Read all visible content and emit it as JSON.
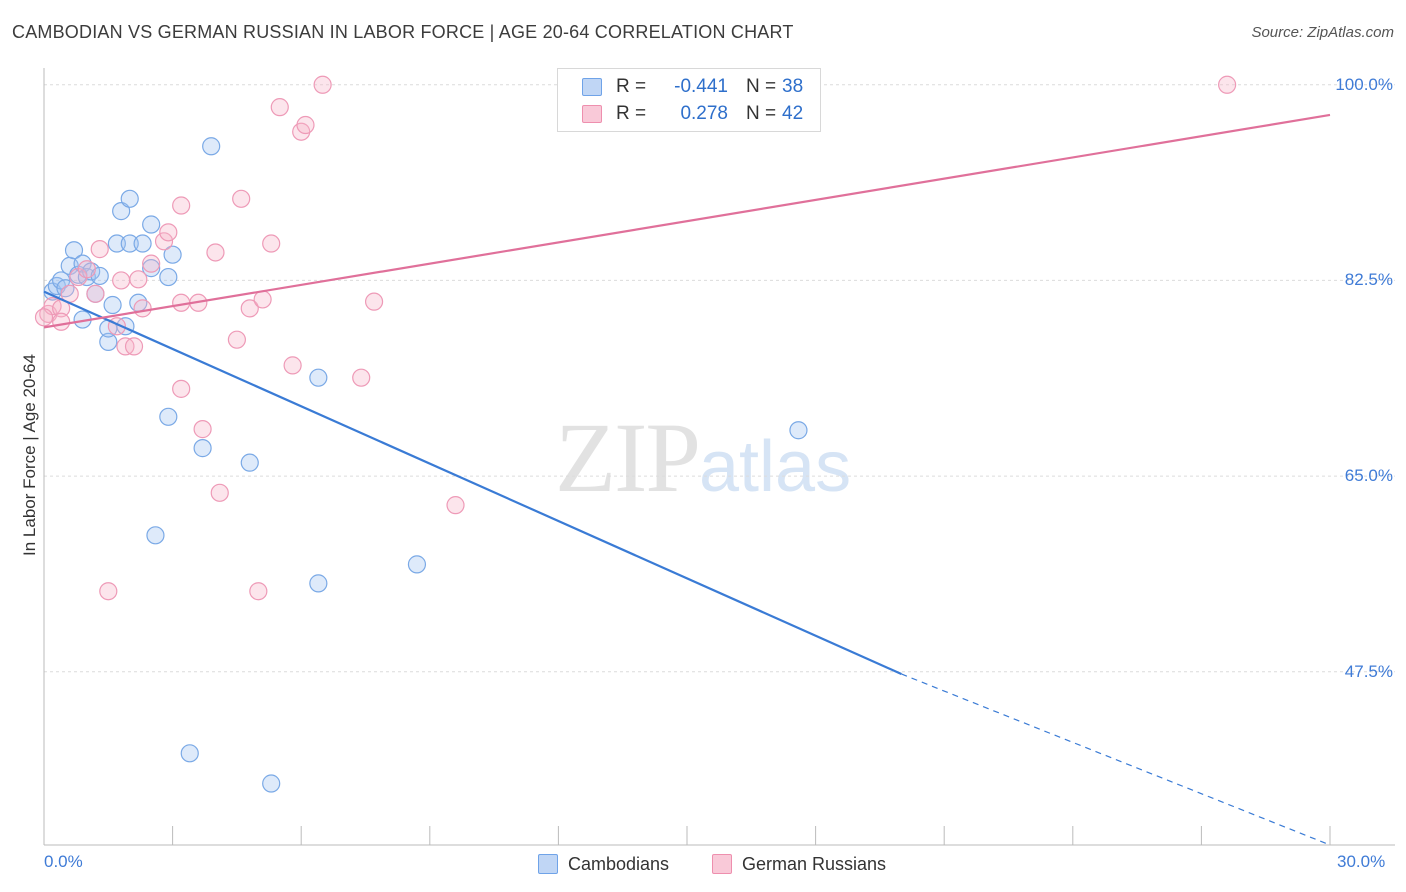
{
  "title": "CAMBODIAN VS GERMAN RUSSIAN IN LABOR FORCE | AGE 20-64 CORRELATION CHART",
  "source": "Source: ZipAtlas.com",
  "watermark": {
    "zip": "ZIP",
    "atlas": "atlas"
  },
  "legend": {
    "rows": [
      {
        "r_label": "R =",
        "r_value": "-0.441",
        "n_label": "N =",
        "n_value": "38",
        "color": "#6fa3e8",
        "fill": "#c0d6f5"
      },
      {
        "r_label": "R =",
        "r_value": "0.278",
        "n_label": "N =",
        "n_value": "42",
        "color": "#ee8fae",
        "fill": "#f9c9d8"
      }
    ]
  },
  "chart_data": {
    "type": "scatter",
    "title": "CAMBODIAN VS GERMAN RUSSIAN IN LABOR FORCE | AGE 20-64 CORRELATION CHART",
    "xlabel": "",
    "ylabel": "In Labor Force | Age 20-64",
    "xlim": [
      0,
      30
    ],
    "ylim": [
      32,
      101.5
    ],
    "x_ticks": [
      "0.0%",
      "30.0%"
    ],
    "y_ticks": [
      {
        "value": 100,
        "label": "100.0%"
      },
      {
        "value": 82.5,
        "label": "82.5%"
      },
      {
        "value": 65,
        "label": "65.0%"
      },
      {
        "value": 47.5,
        "label": "47.5%"
      }
    ],
    "grid": true,
    "legend_position": "bottom",
    "series": [
      {
        "name": "Cambodians",
        "color": "#3a7bd5",
        "fill": "rgba(160,195,240,0.35)",
        "stroke": "#7aa9e6",
        "points": [
          [
            0.2,
            81.5
          ],
          [
            0.3,
            82.0
          ],
          [
            0.4,
            82.5
          ],
          [
            0.5,
            81.8
          ],
          [
            0.6,
            83.8
          ],
          [
            0.7,
            85.2
          ],
          [
            0.8,
            83.0
          ],
          [
            0.9,
            84.0
          ],
          [
            1.0,
            82.8
          ],
          [
            1.1,
            83.3
          ],
          [
            1.2,
            81.3
          ],
          [
            1.3,
            82.9
          ],
          [
            1.6,
            80.3
          ],
          [
            1.8,
            88.7
          ],
          [
            1.7,
            85.8
          ],
          [
            2.0,
            85.8
          ],
          [
            2.0,
            89.8
          ],
          [
            2.3,
            85.8
          ],
          [
            2.5,
            83.6
          ],
          [
            2.5,
            87.5
          ],
          [
            2.2,
            80.5
          ],
          [
            1.5,
            77.0
          ],
          [
            1.5,
            78.2
          ],
          [
            0.9,
            79.0
          ],
          [
            3.0,
            84.8
          ],
          [
            3.9,
            94.5
          ],
          [
            2.9,
            82.8
          ],
          [
            2.9,
            70.3
          ],
          [
            3.7,
            67.5
          ],
          [
            4.8,
            66.2
          ],
          [
            2.6,
            59.7
          ],
          [
            6.4,
            73.8
          ],
          [
            8.7,
            57.1
          ],
          [
            6.4,
            55.4
          ],
          [
            3.4,
            40.2
          ],
          [
            5.3,
            37.5
          ],
          [
            17.6,
            69.1
          ],
          [
            1.9,
            78.4
          ]
        ],
        "trend": {
          "x0": 0,
          "y0": 81.5,
          "x1": 20,
          "y1": 47.3,
          "dash_to_x": 30,
          "dash_to_y": 32
        }
      },
      {
        "name": "German Russians",
        "color": "#e0709a",
        "fill": "rgba(245,180,200,0.35)",
        "stroke": "#ee9ab7",
        "points": [
          [
            0.1,
            79.5
          ],
          [
            0.2,
            80.2
          ],
          [
            0.4,
            80.0
          ],
          [
            0.6,
            81.3
          ],
          [
            0.8,
            82.8
          ],
          [
            1.0,
            83.5
          ],
          [
            1.2,
            81.3
          ],
          [
            1.3,
            85.3
          ],
          [
            1.7,
            78.4
          ],
          [
            1.8,
            82.5
          ],
          [
            1.9,
            76.6
          ],
          [
            2.1,
            76.6
          ],
          [
            2.2,
            82.6
          ],
          [
            2.3,
            80.0
          ],
          [
            2.5,
            84.0
          ],
          [
            2.8,
            86.0
          ],
          [
            2.9,
            86.8
          ],
          [
            3.2,
            80.5
          ],
          [
            3.2,
            89.2
          ],
          [
            3.6,
            80.5
          ],
          [
            3.7,
            69.2
          ],
          [
            3.2,
            72.8
          ],
          [
            4.0,
            85.0
          ],
          [
            4.1,
            63.5
          ],
          [
            4.5,
            77.2
          ],
          [
            4.6,
            89.8
          ],
          [
            4.8,
            80.0
          ],
          [
            5.1,
            80.8
          ],
          [
            5.3,
            85.8
          ],
          [
            5.5,
            98.0
          ],
          [
            5.8,
            74.9
          ],
          [
            6.0,
            95.8
          ],
          [
            6.1,
            96.4
          ],
          [
            6.5,
            100.0
          ],
          [
            7.4,
            73.8
          ],
          [
            7.7,
            80.6
          ],
          [
            9.6,
            62.4
          ],
          [
            1.5,
            54.7
          ],
          [
            5.0,
            54.7
          ],
          [
            27.6,
            100.0
          ],
          [
            0.4,
            78.8
          ],
          [
            0.0,
            79.2
          ]
        ],
        "trend": {
          "x0": 0,
          "y0": 78.3,
          "x1": 30,
          "y1": 97.3
        }
      }
    ]
  }
}
